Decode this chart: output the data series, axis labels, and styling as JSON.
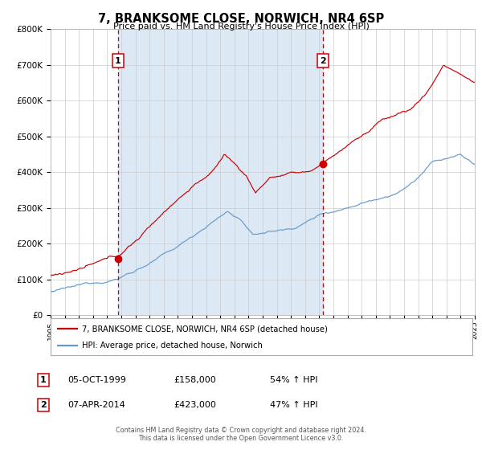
{
  "title": "7, BRANKSOME CLOSE, NORWICH, NR4 6SP",
  "subtitle": "Price paid vs. HM Land Registry's House Price Index (HPI)",
  "legend_line1": "7, BRANKSOME CLOSE, NORWICH, NR4 6SP (detached house)",
  "legend_line2": "HPI: Average price, detached house, Norwich",
  "annotation1_date": "05-OCT-1999",
  "annotation1_price": "£158,000",
  "annotation1_hpi": "54% ↑ HPI",
  "annotation2_date": "07-APR-2014",
  "annotation2_price": "£423,000",
  "annotation2_hpi": "47% ↑ HPI",
  "footer": "Contains HM Land Registry data © Crown copyright and database right 2024.\nThis data is licensed under the Open Government Licence v3.0.",
  "year_start": 1995,
  "year_end": 2025,
  "ylim_max": 800000,
  "red_color": "#cc0000",
  "blue_color": "#6699cc",
  "shading_color": "#dce9f5",
  "background_color": "#ffffff",
  "grid_color": "#cccccc",
  "annotation1_year": 1999.75,
  "annotation2_year": 2014.27,
  "point1_value": 158000,
  "point2_value": 423000
}
